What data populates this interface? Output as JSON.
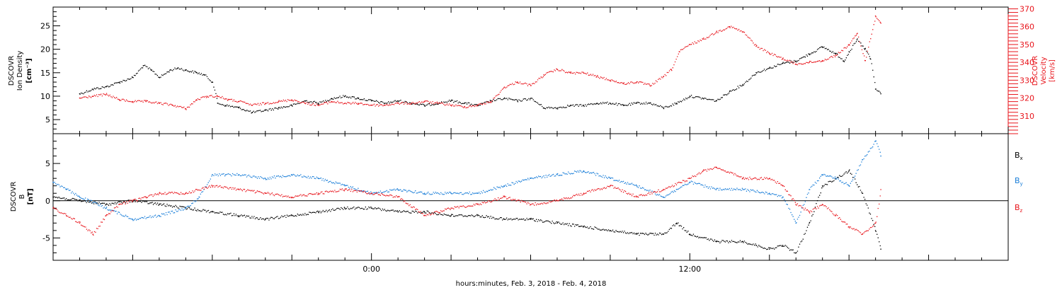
{
  "chart_data": [
    {
      "type": "scatter",
      "panel": "top",
      "ylabel_lines": [
        "DSCOVR",
        "Ion Density",
        "[cm⁻³]"
      ],
      "ylim": [
        2,
        29
      ],
      "yticks": [
        5,
        10,
        15,
        20,
        25
      ],
      "y2label_lines": [
        "DSCOVR",
        "Velocity",
        "[km/s]"
      ],
      "y2lim": [
        300,
        371
      ],
      "y2ticks": [
        310,
        320,
        330,
        340,
        350,
        360,
        370
      ],
      "colors": {
        "density": "#000000",
        "velocity": "#e8141b"
      },
      "series": [
        {
          "name": "",
          "axis": "left",
          "color": "#000000",
          "x": [
            -11.0,
            -10.5,
            -10.0,
            -9.5,
            -9.0,
            -8.6,
            -8.3,
            -8.0,
            -7.6,
            -7.3,
            -7.0,
            -6.6,
            -6.3,
            -6.0,
            -5.8,
            -5.5,
            -5.0,
            -4.5,
            -4.0,
            -3.5,
            -3.0,
            -2.5,
            -2.0,
            -1.5,
            -1.0,
            -0.5,
            0.0,
            0.5,
            1.0,
            1.5,
            2.0,
            2.5,
            3.0,
            3.5,
            4.0,
            4.5,
            5.0,
            5.5,
            6.0,
            6.5,
            7.0,
            7.5,
            8.0,
            8.5,
            9.0,
            9.5,
            10.0,
            10.5,
            11.0,
            11.5,
            12.0,
            12.5,
            13.0,
            13.5,
            14.0,
            14.5,
            15.0,
            15.5,
            16.0,
            16.5,
            17.0,
            17.5,
            17.8,
            18.0,
            18.3,
            18.6,
            18.8,
            19.0,
            19.2
          ],
          "y": [
            10.5,
            11.5,
            12.0,
            13.0,
            14.0,
            16.5,
            15.5,
            14.0,
            15.5,
            16.0,
            15.5,
            15.0,
            14.5,
            13.0,
            8.5,
            8.0,
            7.5,
            6.5,
            7.0,
            7.5,
            8.0,
            9.0,
            8.5,
            9.5,
            10.0,
            9.5,
            9.0,
            8.5,
            9.0,
            8.5,
            8.0,
            8.5,
            9.0,
            8.5,
            8.0,
            9.0,
            9.5,
            9.0,
            9.5,
            7.5,
            7.5,
            8.0,
            8.0,
            8.5,
            8.5,
            8.0,
            8.5,
            8.5,
            7.5,
            8.5,
            10.0,
            9.5,
            9.0,
            11.0,
            12.5,
            15.0,
            16.0,
            17.0,
            17.5,
            19.0,
            20.5,
            19.0,
            17.5,
            19.5,
            22.0,
            20.0,
            18.0,
            11.5,
            10.5
          ]
        },
        {
          "name": "",
          "axis": "right",
          "color": "#e8141b",
          "x": [
            -11.0,
            -10.5,
            -10.0,
            -9.5,
            -9.0,
            -8.5,
            -8.0,
            -7.5,
            -7.0,
            -6.6,
            -6.2,
            -5.8,
            -5.4,
            -5.0,
            -4.5,
            -4.0,
            -3.5,
            -3.0,
            -2.5,
            -2.0,
            -1.5,
            -1.0,
            -0.5,
            0.0,
            0.5,
            1.0,
            1.5,
            2.0,
            2.5,
            3.0,
            3.5,
            4.0,
            4.5,
            5.0,
            5.5,
            6.0,
            6.5,
            7.0,
            7.5,
            8.0,
            8.5,
            9.0,
            9.5,
            10.0,
            10.5,
            11.0,
            11.3,
            11.6,
            12.0,
            12.5,
            13.0,
            13.5,
            14.0,
            14.5,
            15.0,
            15.5,
            16.0,
            16.5,
            17.0,
            17.5,
            18.0,
            18.3,
            18.6,
            19.0,
            19.2
          ],
          "y": [
            320,
            321,
            322,
            319,
            318,
            318,
            317,
            316,
            314,
            319,
            321,
            321,
            319,
            318,
            316,
            317,
            318,
            319,
            317,
            316,
            318,
            317,
            317,
            316,
            316,
            317,
            317,
            318,
            317,
            316,
            315,
            316,
            318,
            326,
            329,
            327,
            333,
            336,
            334,
            334,
            332,
            330,
            328,
            329,
            327,
            332,
            336,
            346,
            350,
            353,
            357,
            360,
            357,
            349,
            345,
            342,
            339,
            340,
            341,
            344,
            350,
            356,
            341,
            366,
            362
          ]
        }
      ]
    },
    {
      "type": "scatter",
      "panel": "bottom",
      "ylabel_lines": [
        "DSCOVR",
        "B",
        "[nT]"
      ],
      "ylim": [
        -8,
        9
      ],
      "yticks": [
        -5,
        0,
        5
      ],
      "zero_line": true,
      "xlabel": "hours:minutes, Feb.  3, 2018 - Feb.  4, 2018",
      "xlim": [
        -12,
        24
      ],
      "xticks": [
        {
          "value": 0,
          "label": "0:00"
        },
        {
          "value": 12,
          "label": "12:00"
        }
      ],
      "colors": {
        "bx": "#000000",
        "by": "#1a7ed8",
        "bz": "#e8141b"
      },
      "series": [
        {
          "name": "Bx",
          "color": "#000000",
          "x": [
            -12.0,
            -11.0,
            -10.0,
            -9.0,
            -8.0,
            -7.0,
            -6.0,
            -5.0,
            -4.0,
            -3.0,
            -2.0,
            -1.0,
            0.0,
            1.0,
            2.0,
            3.0,
            4.0,
            5.0,
            6.0,
            7.0,
            8.0,
            9.0,
            10.0,
            11.0,
            11.5,
            12.0,
            13.0,
            14.0,
            14.5,
            15.0,
            15.5,
            16.0,
            16.5,
            17.0,
            17.5,
            18.0,
            18.5,
            19.0,
            19.2
          ],
          "y": [
            0.5,
            0.0,
            -0.5,
            0.0,
            -0.5,
            -1.0,
            -1.5,
            -2.0,
            -2.5,
            -2.0,
            -1.5,
            -1.0,
            -1.0,
            -1.5,
            -1.5,
            -2.0,
            -2.0,
            -2.5,
            -2.5,
            -3.0,
            -3.5,
            -4.0,
            -4.5,
            -4.5,
            -3.0,
            -4.5,
            -5.5,
            -5.5,
            -6.0,
            -6.5,
            -6.0,
            -7.0,
            -3.0,
            2.0,
            3.0,
            4.0,
            1.0,
            -4.0,
            -6.5
          ]
        },
        {
          "name": "By",
          "color": "#1a7ed8",
          "x": [
            -12.0,
            -11.5,
            -11.0,
            -10.0,
            -9.0,
            -8.0,
            -7.0,
            -6.5,
            -6.0,
            -5.5,
            -5.0,
            -4.0,
            -3.0,
            -2.0,
            -1.0,
            0.0,
            1.0,
            2.0,
            3.0,
            4.0,
            5.0,
            6.0,
            7.0,
            8.0,
            9.0,
            10.0,
            11.0,
            12.0,
            13.0,
            14.0,
            15.0,
            15.5,
            16.0,
            16.5,
            17.0,
            17.5,
            18.0,
            18.5,
            19.0,
            19.2
          ],
          "y": [
            2.5,
            1.5,
            0.5,
            -1.0,
            -2.5,
            -2.0,
            -1.0,
            0.5,
            3.5,
            3.5,
            3.5,
            3.0,
            3.5,
            3.0,
            2.0,
            1.0,
            1.5,
            1.0,
            1.0,
            1.0,
            2.0,
            3.0,
            3.5,
            4.0,
            3.0,
            2.0,
            0.5,
            2.5,
            1.5,
            1.5,
            1.0,
            0.5,
            -3.0,
            1.5,
            3.5,
            3.0,
            2.0,
            5.5,
            8.0,
            6.0
          ]
        },
        {
          "name": "Bz",
          "color": "#e8141b",
          "x": [
            -12.0,
            -11.5,
            -11.0,
            -10.5,
            -10.0,
            -9.5,
            -9.0,
            -8.5,
            -8.0,
            -7.0,
            -6.0,
            -5.0,
            -4.0,
            -3.0,
            -2.0,
            -1.0,
            0.0,
            1.0,
            2.0,
            3.0,
            4.0,
            5.0,
            6.0,
            7.0,
            8.0,
            9.0,
            10.0,
            11.0,
            12.0,
            12.5,
            13.0,
            14.0,
            15.0,
            15.5,
            16.0,
            16.5,
            17.0,
            17.5,
            18.0,
            18.5,
            19.0,
            19.2
          ],
          "y": [
            -1.0,
            -2.0,
            -3.0,
            -4.5,
            -2.0,
            -0.5,
            0.0,
            0.5,
            1.0,
            1.0,
            2.0,
            1.5,
            1.0,
            0.5,
            1.0,
            1.5,
            1.0,
            0.5,
            -2.0,
            -1.0,
            -0.5,
            0.5,
            -0.5,
            0.0,
            1.0,
            2.0,
            0.5,
            1.5,
            3.0,
            4.0,
            4.5,
            3.0,
            3.0,
            2.0,
            -0.5,
            -1.5,
            -0.5,
            -2.0,
            -3.5,
            -4.5,
            -3.0,
            1.5
          ]
        }
      ]
    }
  ]
}
